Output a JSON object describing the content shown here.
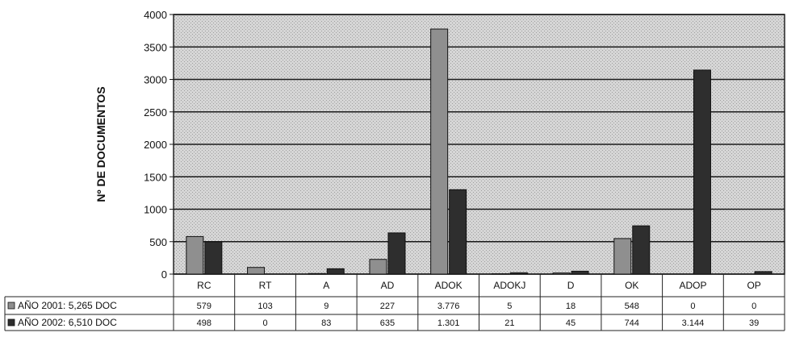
{
  "chart_data": {
    "type": "bar",
    "ylabel": "Nº DE DOCUMENTOS",
    "ylim": [
      0,
      4000
    ],
    "yticks": [
      "0",
      "500",
      "1000",
      "1500",
      "2000",
      "2500",
      "3000",
      "3500",
      "4000"
    ],
    "categories": [
      "RC",
      "RT",
      "A",
      "AD",
      "ADOK",
      "ADOKJ",
      "D",
      "OK",
      "ADOP",
      "OP"
    ],
    "grid": true,
    "legend_placement": "table-left",
    "series": [
      {
        "name": "AÑO 2001: 5,265 DOC",
        "color": "#8f8f8f",
        "values": [
          579,
          103,
          9,
          227,
          3776,
          5,
          18,
          548,
          0,
          0
        ],
        "labels": [
          "579",
          "103",
          "9",
          "227",
          "3.776",
          "5",
          "18",
          "548",
          "0",
          "0"
        ]
      },
      {
        "name": "AÑO 2002: 6,510 DOC",
        "color": "#2e2e2e",
        "values": [
          498,
          0,
          83,
          635,
          1301,
          21,
          45,
          744,
          3144,
          39
        ],
        "labels": [
          "498",
          "0",
          "83",
          "635",
          "1.301",
          "21",
          "45",
          "744",
          "3.144",
          "39"
        ]
      }
    ]
  }
}
